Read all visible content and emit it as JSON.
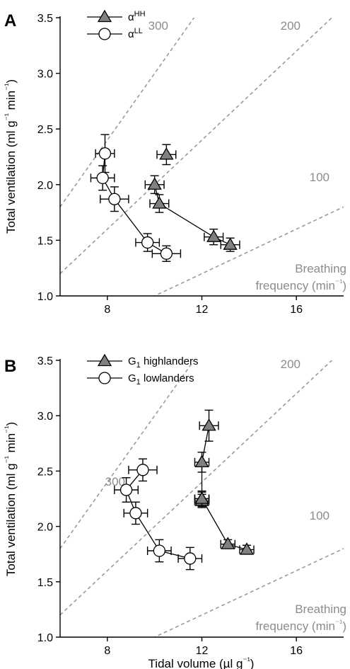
{
  "chart_data": [
    {
      "panel": "A",
      "type": "scatter",
      "xlabel": "",
      "ylabel": "Total ventilation (ml g⁻¹ min⁻¹)",
      "xlim": [
        6,
        18
      ],
      "ylim": [
        1.0,
        3.5
      ],
      "xticks": [
        "8",
        "12",
        "16"
      ],
      "yticks": [
        "1.0",
        "1.5",
        "2.0",
        "2.5",
        "3.0",
        "3.5"
      ],
      "isopleths": [
        {
          "label": "300",
          "slope": 0.3
        },
        {
          "label": "200",
          "slope": 0.2
        },
        {
          "label": "100",
          "slope": 0.1
        }
      ],
      "isopleth_title": [
        "Breathing",
        "frequency (min⁻¹)"
      ],
      "series": [
        {
          "name": "αHH",
          "base": "α",
          "sup": "HH",
          "marker": "triangle",
          "fill": "#808080",
          "segments": [
            [
              1,
              2,
              3,
              4
            ]
          ],
          "points": [
            {
              "x": 10.5,
              "y": 2.27,
              "xerr": 0.4,
              "yerr": 0.09
            },
            {
              "x": 10.0,
              "y": 2.0,
              "xerr": 0.4,
              "yerr": 0.08
            },
            {
              "x": 10.2,
              "y": 1.83,
              "xerr": 0.4,
              "yerr": 0.08
            },
            {
              "x": 12.5,
              "y": 1.53,
              "xerr": 0.4,
              "yerr": 0.07
            },
            {
              "x": 13.2,
              "y": 1.46,
              "xerr": 0.4,
              "yerr": 0.06
            }
          ]
        },
        {
          "name": "αLL",
          "base": "α",
          "sup": "LL",
          "marker": "circle",
          "fill": "#ffffff",
          "segments": [
            [
              0,
              1,
              2,
              3,
              4
            ]
          ],
          "points": [
            {
              "x": 7.9,
              "y": 2.28,
              "xerr": 0.4,
              "yerr": 0.17
            },
            {
              "x": 7.8,
              "y": 2.06,
              "xerr": 0.5,
              "yerr": 0.11
            },
            {
              "x": 8.3,
              "y": 1.87,
              "xerr": 0.6,
              "yerr": 0.11
            },
            {
              "x": 9.7,
              "y": 1.48,
              "xerr": 0.5,
              "yerr": 0.08
            },
            {
              "x": 10.5,
              "y": 1.38,
              "xerr": 0.6,
              "yerr": 0.07
            }
          ]
        }
      ]
    },
    {
      "panel": "B",
      "type": "scatter",
      "xlabel": "Tidal volume (µl g⁻¹)",
      "ylabel": "Total ventilation (ml g⁻¹ min⁻¹)",
      "xlim": [
        6,
        18
      ],
      "ylim": [
        1.0,
        3.5
      ],
      "xticks": [
        "8",
        "12",
        "16"
      ],
      "yticks": [
        "1.0",
        "1.5",
        "2.0",
        "2.5",
        "3.0",
        "3.5"
      ],
      "isopleths": [
        {
          "label": "300",
          "slope": 0.3
        },
        {
          "label": "200",
          "slope": 0.2
        },
        {
          "label": "100",
          "slope": 0.1
        }
      ],
      "isopleth_title": [
        "Breathing",
        "frequency (min⁻¹)"
      ],
      "series": [
        {
          "name": "G1 highlanders",
          "base": "G",
          "sub": "1",
          "rest": " highlanders",
          "marker": "triangle",
          "fill": "#808080",
          "segments": [
            [
              0,
              1,
              2,
              3
            ],
            [
              4,
              5,
              6
            ]
          ],
          "points": [
            {
              "x": 12.3,
              "y": 2.91,
              "xerr": 0.4,
              "yerr": 0.14
            },
            {
              "x": 12.0,
              "y": 2.58,
              "xerr": 0.3,
              "yerr": 0.09
            },
            {
              "x": 12.0,
              "y": 2.25,
              "xerr": 0.3,
              "yerr": 0.07
            },
            {
              "x": 12.0,
              "y": 2.23,
              "xerr": 0.3,
              "yerr": 0.06
            },
            {
              "x": 12.0,
              "y": 2.25,
              "xerr": 0.3,
              "yerr": 0.06
            },
            {
              "x": 13.1,
              "y": 1.84,
              "xerr": 0.3,
              "yerr": 0.04
            },
            {
              "x": 13.9,
              "y": 1.79,
              "xerr": 0.3,
              "yerr": 0.04
            }
          ]
        },
        {
          "name": "G1 lowlanders",
          "base": "G",
          "sub": "1",
          "rest": " lowlanders",
          "marker": "circle",
          "fill": "#ffffff",
          "segments": [
            [
              0,
              1,
              2,
              3,
              4
            ]
          ],
          "points": [
            {
              "x": 9.5,
              "y": 2.51,
              "xerr": 0.6,
              "yerr": 0.1
            },
            {
              "x": 8.8,
              "y": 2.33,
              "xerr": 0.5,
              "yerr": 0.11
            },
            {
              "x": 9.2,
              "y": 2.12,
              "xerr": 0.5,
              "yerr": 0.1
            },
            {
              "x": 10.2,
              "y": 1.78,
              "xerr": 0.5,
              "yerr": 0.1
            },
            {
              "x": 11.5,
              "y": 1.71,
              "xerr": 0.5,
              "yerr": 0.1
            }
          ]
        }
      ]
    }
  ]
}
